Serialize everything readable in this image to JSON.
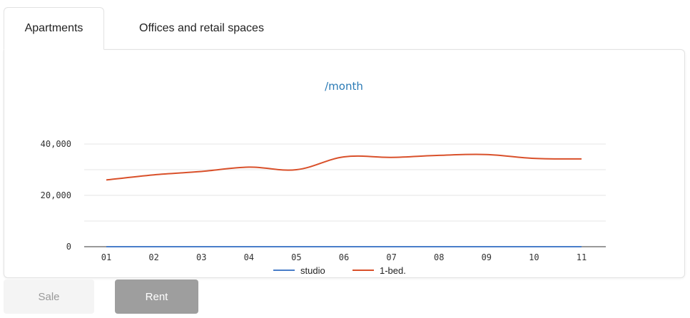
{
  "tabs": [
    {
      "label": "Apartments",
      "active": true
    },
    {
      "label": "Offices and retail spaces",
      "active": false
    }
  ],
  "buttons": {
    "sale_label": "Sale",
    "rent_label": "Rent",
    "active": "Rent"
  },
  "chart_data": {
    "type": "line",
    "title": "/month",
    "categories": [
      "01",
      "02",
      "03",
      "04",
      "05",
      "06",
      "07",
      "08",
      "09",
      "10",
      "11"
    ],
    "series": [
      {
        "name": "studio",
        "color": "#4a7ec9",
        "values": [
          0,
          0,
          0,
          0,
          0,
          0,
          0,
          0,
          0,
          0,
          0
        ]
      },
      {
        "name": "1-bed.",
        "color": "#d9502a",
        "values": [
          26000,
          28000,
          29300,
          31000,
          30000,
          35000,
          34800,
          35600,
          35900,
          34400,
          34200
        ]
      }
    ],
    "ylim": [
      0,
      40000
    ],
    "yticks": [
      "0",
      "20,000",
      "40,000"
    ],
    "ytick_values": [
      0,
      20000,
      40000
    ],
    "grid": true,
    "legend": "bottom"
  }
}
